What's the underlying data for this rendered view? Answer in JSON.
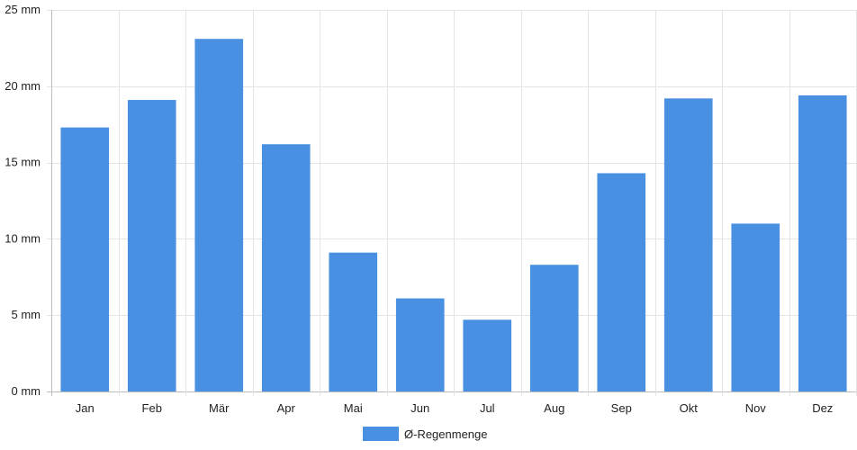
{
  "chart_data": {
    "type": "bar",
    "categories": [
      "Jan",
      "Feb",
      "Mär",
      "Apr",
      "Mai",
      "Jun",
      "Jul",
      "Aug",
      "Sep",
      "Okt",
      "Nov",
      "Dez"
    ],
    "series": [
      {
        "name": "Ø-Regenmenge",
        "values": [
          17.3,
          19.1,
          23.1,
          16.2,
          9.1,
          6.1,
          4.7,
          8.3,
          14.3,
          19.2,
          11.0,
          19.4
        ],
        "color": "#4a90e2"
      }
    ],
    "y_ticks": [
      "0 mm",
      "5 mm",
      "10 mm",
      "15 mm",
      "20 mm",
      "25 mm"
    ],
    "y_tick_values": [
      0,
      5,
      10,
      15,
      20,
      25
    ],
    "ylim": [
      0,
      25
    ],
    "unit": "mm",
    "grid": true,
    "legend": "bottom-center"
  }
}
